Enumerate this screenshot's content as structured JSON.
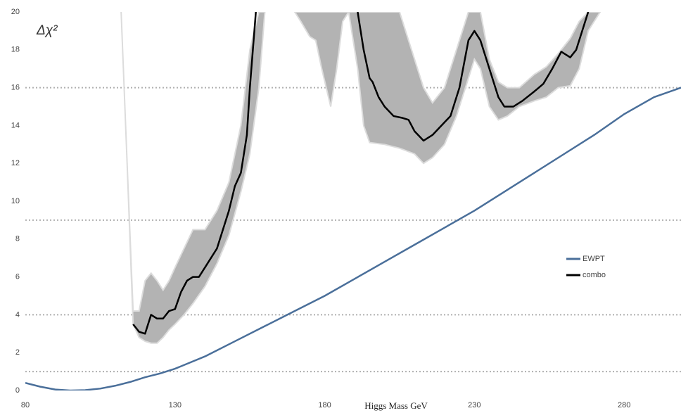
{
  "chart_data": {
    "type": "line",
    "annotation": "Δχ²",
    "x_label": "Higgs Mass GeV",
    "xlim": [
      80,
      299
    ],
    "xticks": [
      80,
      130,
      180,
      230,
      280
    ],
    "ylim": [
      0,
      20
    ],
    "yticks": [
      0,
      2,
      4,
      6,
      8,
      10,
      12,
      14,
      16,
      18,
      20
    ],
    "hlines": [
      1,
      4,
      9,
      16
    ],
    "hline_color": "#b0b0b0",
    "legend": "right",
    "band_color": "#b3b3b3",
    "band_edge_color": "#dcdcdc",
    "band": [
      {
        "x": [
          112,
          114,
          116,
          118,
          120,
          122,
          124,
          126,
          128,
          130,
          133,
          136,
          140,
          144,
          148,
          152,
          155,
          158,
          160
        ],
        "upper": [
          20,
          12,
          4.2,
          4.2,
          5.8,
          6.2,
          5.8,
          5.3,
          5.8,
          6.5,
          7.5,
          8.5,
          8.5,
          9.5,
          11,
          14,
          18,
          20,
          20
        ],
        "lower": [
          20,
          12,
          3.5,
          2.8,
          2.6,
          2.5,
          2.5,
          2.8,
          3.2,
          3.5,
          4.0,
          4.6,
          5.5,
          6.7,
          8.2,
          10.5,
          12.5,
          16,
          20
        ]
      },
      {
        "x": [
          170,
          172,
          175,
          177,
          179,
          182,
          184,
          186,
          188,
          191,
          193,
          195,
          200,
          205,
          210,
          213,
          216,
          220,
          224,
          228,
          230,
          232,
          235,
          238,
          241,
          245,
          250,
          254,
          258,
          262,
          265,
          268,
          272
        ],
        "upper": [
          20,
          20,
          20,
          20,
          20,
          20,
          20,
          20,
          20,
          20,
          20,
          20,
          20,
          20,
          17.5,
          16,
          15.2,
          16,
          18,
          20,
          20,
          20,
          17.5,
          16.3,
          16,
          16,
          16.7,
          17.1,
          17.8,
          18.6,
          19.5,
          20,
          20
        ],
        "lower": [
          20,
          19.5,
          18.7,
          18.5,
          17,
          15,
          17,
          19.5,
          20,
          17,
          14,
          13.1,
          13,
          12.8,
          12.5,
          12,
          12.3,
          13,
          14.5,
          16.5,
          17.5,
          17,
          15,
          14.3,
          14.5,
          15,
          15.3,
          15.5,
          16,
          16.1,
          17,
          19,
          20
        ]
      }
    ],
    "series": [
      {
        "name": "EWPT",
        "color": "#4a6f9a",
        "x": [
          80,
          85,
          90,
          95,
          100,
          105,
          110,
          115,
          120,
          125,
          130,
          140,
          150,
          160,
          170,
          180,
          190,
          200,
          210,
          220,
          230,
          240,
          250,
          260,
          270,
          280,
          290,
          299
        ],
        "values": [
          0.4,
          0.2,
          0.05,
          0,
          0.02,
          0.1,
          0.25,
          0.45,
          0.7,
          0.9,
          1.15,
          1.8,
          2.6,
          3.4,
          4.2,
          5.0,
          5.9,
          6.8,
          7.7,
          8.6,
          9.5,
          10.5,
          11.5,
          12.5,
          13.5,
          14.6,
          15.5,
          16
        ]
      },
      {
        "name": "combo",
        "color": "#000000",
        "x": [
          116,
          118,
          120,
          122,
          124,
          126,
          128,
          130,
          132,
          134,
          136,
          138,
          140,
          142,
          144,
          146,
          148,
          150,
          152,
          154,
          155,
          156,
          157,
          175,
          191,
          193,
          195,
          196,
          198,
          200,
          203,
          206,
          208,
          210,
          213,
          216,
          219,
          222,
          225,
          228,
          230,
          232,
          235,
          238,
          240,
          243,
          246,
          250,
          253,
          256,
          259,
          262,
          264,
          267,
          268
        ],
        "values": [
          3.5,
          3.1,
          3.0,
          4.0,
          3.8,
          3.8,
          4.2,
          4.3,
          5.2,
          5.8,
          6.0,
          6.0,
          6.5,
          7.0,
          7.5,
          8.5,
          9.5,
          10.8,
          11.5,
          13.5,
          16,
          18,
          20,
          null,
          20,
          18,
          16.5,
          16.3,
          15.5,
          15.0,
          14.5,
          14.4,
          14.3,
          13.7,
          13.2,
          13.5,
          14,
          14.5,
          16,
          18.5,
          19,
          18.5,
          17,
          15.5,
          15.0,
          15.0,
          15.3,
          15.8,
          16.2,
          17,
          17.9,
          17.6,
          18,
          19.5,
          20
        ]
      }
    ]
  }
}
